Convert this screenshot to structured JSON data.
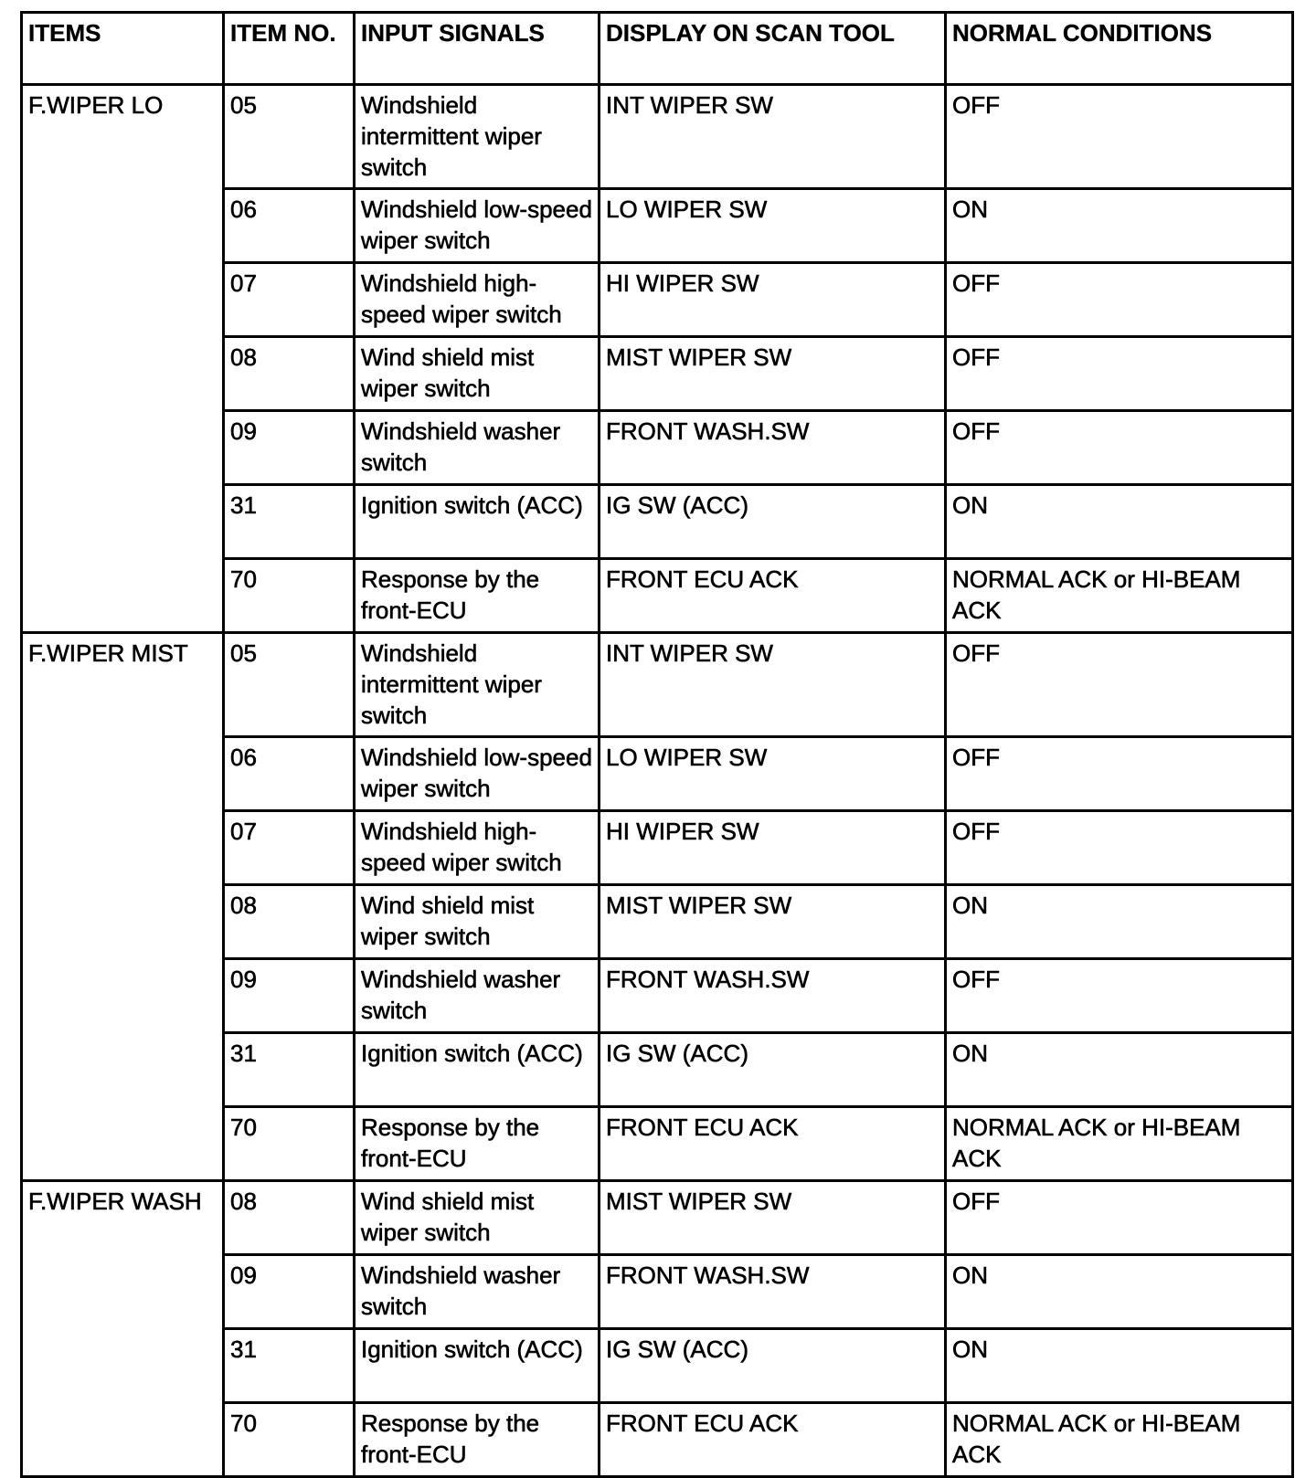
{
  "headers": [
    "ITEMS",
    "ITEM NO.",
    "INPUT SIGNALS",
    "DISPLAY ON SCAN TOOL",
    "NORMAL CONDITIONS"
  ],
  "groups": [
    {
      "item": "F.WIPER LO",
      "rows": [
        {
          "no": "05",
          "signal": "Windshield intermittent wiper switch",
          "display": "INT WIPER SW",
          "normal": "OFF"
        },
        {
          "no": "06",
          "signal": "Windshield low-speed wiper switch",
          "display": "LO WIPER SW",
          "normal": "ON"
        },
        {
          "no": "07",
          "signal": "Windshield high-speed wiper switch",
          "display": "HI WIPER SW",
          "normal": "OFF"
        },
        {
          "no": "08",
          "signal": "Wind shield mist wiper switch",
          "display": "MIST WIPER SW",
          "normal": "OFF"
        },
        {
          "no": "09",
          "signal": "Windshield washer switch",
          "display": "FRONT WASH.SW",
          "normal": "OFF"
        },
        {
          "no": "31",
          "signal": "Ignition switch (ACC)",
          "display": "IG SW (ACC)",
          "normal": "ON"
        },
        {
          "no": "70",
          "signal": "Response by the front-ECU",
          "display": "FRONT ECU ACK",
          "normal": "NORMAL ACK or HI-BEAM ACK"
        }
      ]
    },
    {
      "item": "F.WIPER MIST",
      "rows": [
        {
          "no": "05",
          "signal": "Windshield intermittent wiper switch",
          "display": "INT WIPER SW",
          "normal": "OFF"
        },
        {
          "no": "06",
          "signal": "Windshield low-speed wiper switch",
          "display": "LO WIPER SW",
          "normal": "OFF"
        },
        {
          "no": "07",
          "signal": "Windshield high-speed wiper switch",
          "display": "HI WIPER SW",
          "normal": "OFF"
        },
        {
          "no": "08",
          "signal": "Wind shield mist wiper switch",
          "display": "MIST WIPER SW",
          "normal": "ON"
        },
        {
          "no": "09",
          "signal": "Windshield washer switch",
          "display": "FRONT WASH.SW",
          "normal": "OFF"
        },
        {
          "no": "31",
          "signal": "Ignition switch (ACC)",
          "display": "IG SW (ACC)",
          "normal": "ON"
        },
        {
          "no": "70",
          "signal": "Response by the front-ECU",
          "display": "FRONT ECU ACK",
          "normal": "NORMAL ACK or HI-BEAM ACK"
        }
      ]
    },
    {
      "item": "F.WIPER WASH",
      "rows": [
        {
          "no": "08",
          "signal": "Wind shield mist wiper switch",
          "display": "MIST WIPER SW",
          "normal": "OFF"
        },
        {
          "no": "09",
          "signal": "Windshield washer switch",
          "display": "FRONT WASH.SW",
          "normal": "ON"
        },
        {
          "no": "31",
          "signal": "Ignition switch (ACC)",
          "display": "IG SW (ACC)",
          "normal": "ON"
        },
        {
          "no": "70",
          "signal": "Response by the front-ECU",
          "display": "FRONT ECU ACK",
          "normal": "NORMAL ACK or HI-BEAM ACK"
        }
      ]
    }
  ]
}
